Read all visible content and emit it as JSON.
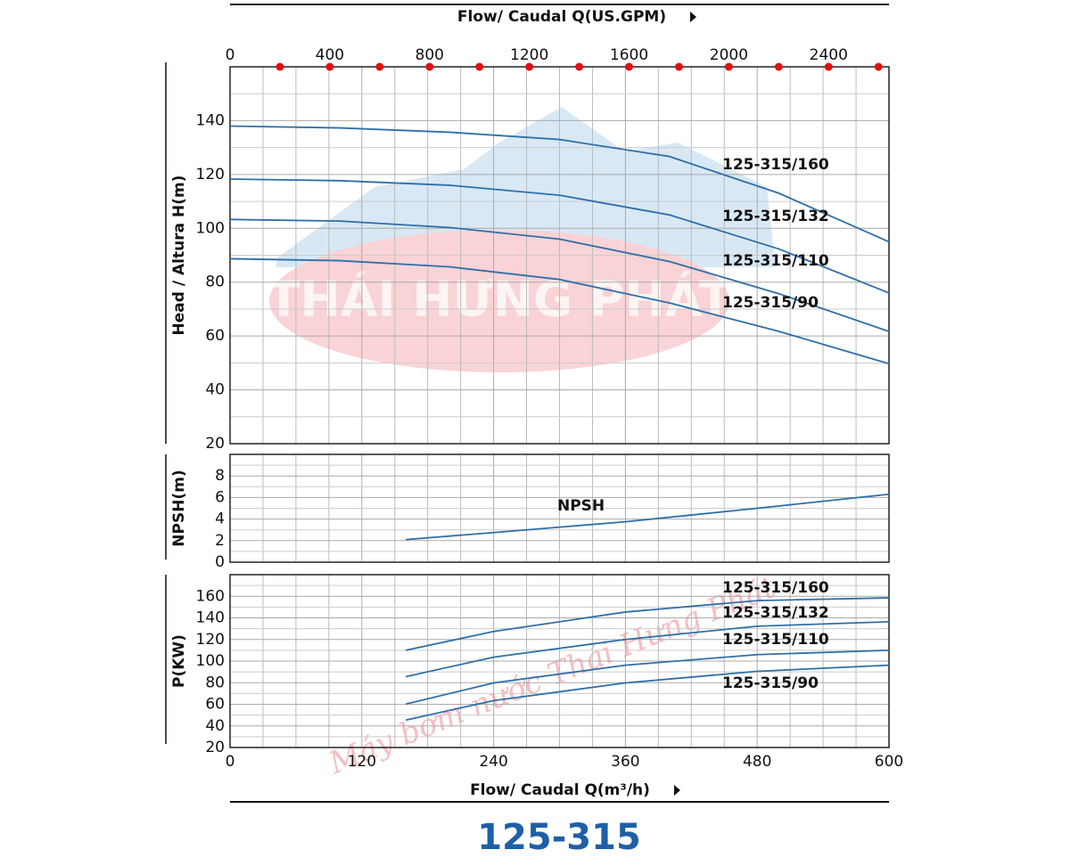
{
  "title": "125-315",
  "watermark": [
    "THÁI HƯNG PHÁT",
    "Máy bơm nước Thái Hưng Phát"
  ],
  "chart_data": [
    {
      "type": "line",
      "ylabel": "Head / Altura H(m)",
      "x2label": "Flow/ Caudal Q(US.GPM)",
      "xlim": [
        0,
        600
      ],
      "ylim": [
        20,
        160
      ],
      "yticks": [
        20,
        40,
        60,
        80,
        100,
        120,
        140
      ],
      "x2lim": [
        0,
        2642
      ],
      "x2ticks": [
        0,
        400,
        800,
        1200,
        1600,
        2000,
        2400
      ],
      "x2dots": [
        200,
        400,
        600,
        800,
        1000,
        1200,
        1400,
        1600,
        1800,
        2000,
        2200,
        2400,
        2600
      ],
      "grid": true,
      "x": [
        0,
        100,
        200,
        300,
        400,
        500,
        600
      ],
      "series": [
        {
          "name": "125-315/160",
          "color": "#2f6fa8",
          "values": [
            138,
            137.3,
            135.7,
            133,
            126.7,
            113,
            95
          ]
        },
        {
          "name": "125-315/132",
          "color": "#2f6fa8",
          "values": [
            118.3,
            117.7,
            116,
            112.3,
            105,
            92.3,
            76
          ]
        },
        {
          "name": "125-315/110",
          "color": "#2f6fa8",
          "values": [
            103.3,
            102.7,
            100.3,
            96,
            87.7,
            75.7,
            61.7
          ]
        },
        {
          "name": "125-315/90",
          "color": "#2f6fa8",
          "values": [
            88.7,
            88,
            85.7,
            81,
            72.3,
            61.7,
            49.7
          ]
        }
      ]
    },
    {
      "type": "line",
      "ylabel": "NPSH(m)",
      "xlim": [
        0,
        600
      ],
      "ylim": [
        0,
        10
      ],
      "yticks": [
        0,
        2,
        4,
        6,
        8
      ],
      "grid": true,
      "x": [
        160,
        240,
        360,
        480,
        600
      ],
      "series": [
        {
          "name": "NPSH",
          "color": "#2f6fa8",
          "values": [
            2.1,
            2.75,
            3.75,
            5,
            6.3
          ]
        }
      ]
    },
    {
      "type": "line",
      "ylabel": "P(KW)",
      "xlabel": "Flow/ Caudal Q(m³/h)",
      "xlim": [
        0,
        600
      ],
      "ylim": [
        20,
        180
      ],
      "xticks": [
        0,
        120,
        240,
        360,
        480,
        600
      ],
      "yticks": [
        20,
        40,
        60,
        80,
        100,
        120,
        140,
        160
      ],
      "grid": true,
      "x": [
        160,
        240,
        360,
        480,
        600
      ],
      "series": [
        {
          "name": "125-315/160",
          "color": "#2f6fa8",
          "values": [
            110,
            127.4,
            145.4,
            156,
            158.5
          ]
        },
        {
          "name": "125-315/132",
          "color": "#2f6fa8",
          "values": [
            85.6,
            103.6,
            120,
            132.3,
            136.4
          ]
        },
        {
          "name": "125-315/110",
          "color": "#2f6fa8",
          "values": [
            60.2,
            79.8,
            96.2,
            106,
            110
          ]
        },
        {
          "name": "125-315/90",
          "color": "#2f6fa8",
          "values": [
            45.4,
            63.4,
            79.8,
            90.5,
            96.2
          ]
        }
      ]
    }
  ]
}
